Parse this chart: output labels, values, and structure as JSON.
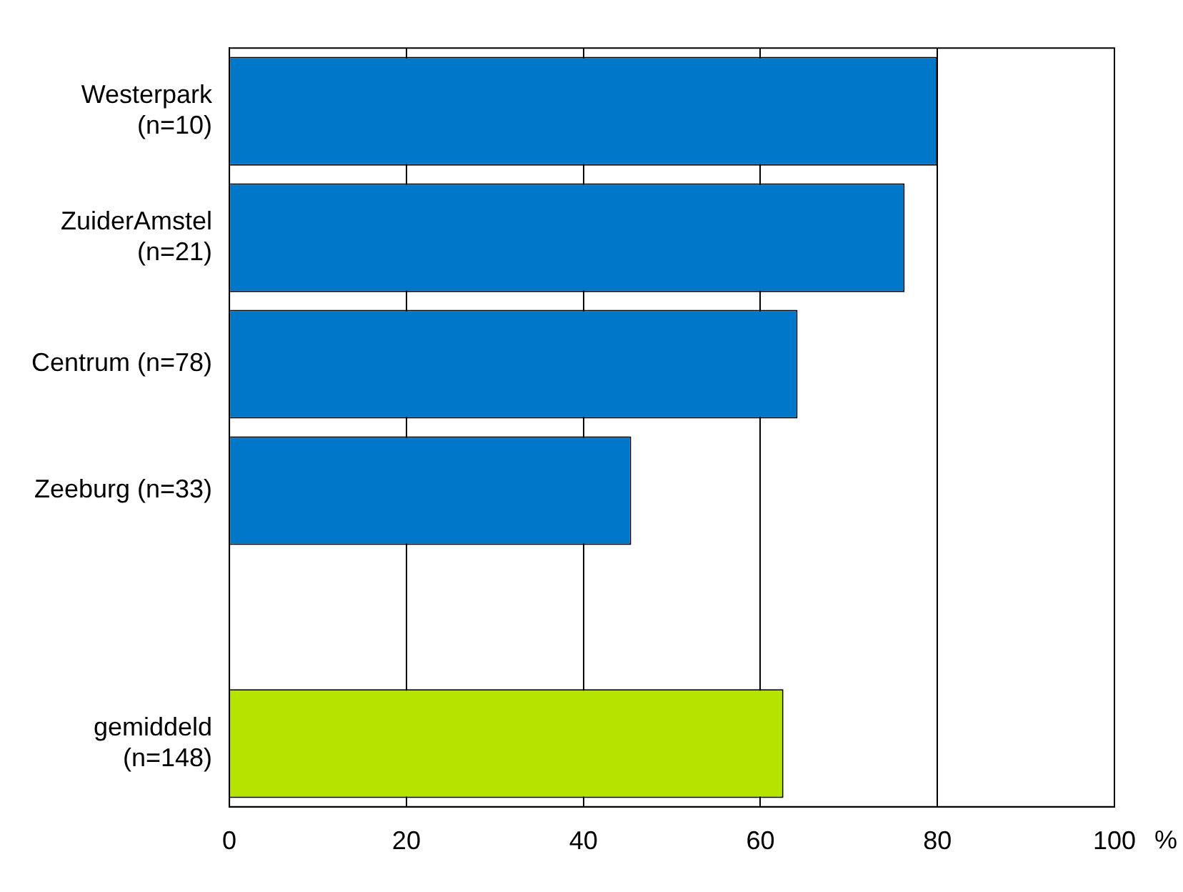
{
  "chart_data": {
    "type": "bar",
    "orientation": "horizontal",
    "xlabel": "%",
    "categories": [
      "Westerpark\n(n=10)",
      "ZuiderAmstel\n(n=21)",
      "Centrum (n=78)",
      "Zeeburg (n=33)",
      null,
      "gemiddeld\n(n=148)"
    ],
    "values": [
      80,
      76.3,
      64.2,
      45.4,
      null,
      62.6
    ],
    "colors": [
      "#0077c8",
      "#0077c8",
      "#0077c8",
      "#0077c8",
      "#0077c8",
      "#b5e400"
    ],
    "xlim": [
      0,
      100
    ],
    "xticks": [
      0,
      20,
      40,
      60,
      80,
      100
    ],
    "grid": "x"
  }
}
